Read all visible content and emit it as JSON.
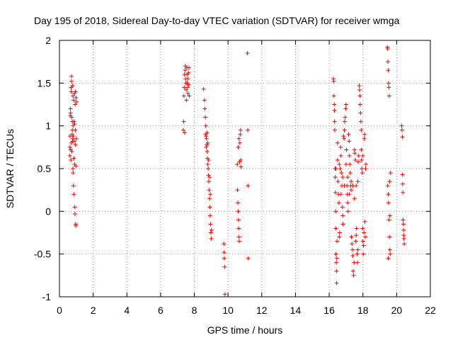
{
  "chart_data": {
    "type": "scatter",
    "title": "Day 195 of 2018, Sidereal Day-to-day VTEC variation (SDTVAR) for receiver wmga",
    "xlabel": "GPS time / hours",
    "ylabel": "SDTVAR / TECUs",
    "xlim": [
      0,
      22
    ],
    "ylim": [
      -1,
      2
    ],
    "xticks": [
      "0",
      "2",
      "4",
      "6",
      "8",
      "10",
      "12",
      "14",
      "16",
      "18",
      "20",
      "22"
    ],
    "yticks": [
      "-1",
      "-0.5",
      "0",
      "0.5",
      "1",
      "1.5",
      "2"
    ],
    "grid": true,
    "marker": "+",
    "marker_color": "#ff0000",
    "series": [
      {
        "name": "SDTVAR",
        "points": [
          [
            0.62,
            0.65
          ],
          [
            0.62,
            0.75
          ],
          [
            0.63,
            0.88
          ],
          [
            0.64,
            1.12
          ],
          [
            0.65,
            1.2
          ],
          [
            0.66,
            1.15
          ],
          [
            0.67,
            0.72
          ],
          [
            0.68,
            0.6
          ],
          [
            0.69,
            1.45
          ],
          [
            0.7,
            1.4
          ],
          [
            0.71,
            0.8
          ],
          [
            0.72,
            1.58
          ],
          [
            0.72,
            1.52
          ],
          [
            0.73,
            1.1
          ],
          [
            0.74,
            0.7
          ],
          [
            0.75,
            0.9
          ],
          [
            0.76,
            1.05
          ],
          [
            0.76,
            0.95
          ],
          [
            0.77,
            0.82
          ],
          [
            0.78,
            1.47
          ],
          [
            0.79,
            0.85
          ],
          [
            0.8,
            0.5
          ],
          [
            0.8,
            1.35
          ],
          [
            0.81,
            0.45
          ],
          [
            0.81,
            1.0
          ],
          [
            0.82,
            0.88
          ],
          [
            0.83,
            0.3
          ],
          [
            0.84,
            1.3
          ],
          [
            0.85,
            0.2
          ],
          [
            0.86,
            0.62
          ],
          [
            0.87,
            1.05
          ],
          [
            0.88,
            0.82
          ],
          [
            0.89,
            1.38
          ],
          [
            0.9,
            0.55
          ],
          [
            0.9,
            1.02
          ],
          [
            0.91,
            0.05
          ],
          [
            0.92,
            -0.03
          ],
          [
            0.93,
            1.25
          ],
          [
            0.94,
            0.95
          ],
          [
            0.95,
            0.78
          ],
          [
            0.95,
            1.4
          ],
          [
            0.96,
            -0.15
          ],
          [
            0.97,
            -0.17
          ],
          [
            0.98,
            0.53
          ],
          [
            0.99,
            1.33
          ],
          [
            1.0,
            0.85
          ],
          [
            1.01,
            1.28
          ],
          [
            7.35,
            0.95
          ],
          [
            7.37,
            1.05
          ],
          [
            7.38,
            1.35
          ],
          [
            7.4,
            1.45
          ],
          [
            7.42,
            1.6
          ],
          [
            7.43,
            0.92
          ],
          [
            7.45,
            1.65
          ],
          [
            7.47,
            1.7
          ],
          [
            7.48,
            1.55
          ],
          [
            7.5,
            1.5
          ],
          [
            7.52,
            1.42
          ],
          [
            7.53,
            1.3
          ],
          [
            7.55,
            1.68
          ],
          [
            7.57,
            1.6
          ],
          [
            7.58,
            1.5
          ],
          [
            7.6,
            1.45
          ],
          [
            7.62,
            1.38
          ],
          [
            7.63,
            1.55
          ],
          [
            7.65,
            1.62
          ],
          [
            7.67,
            1.48
          ],
          [
            7.68,
            1.68
          ],
          [
            7.7,
            1.35
          ],
          [
            8.55,
            1.43
          ],
          [
            8.6,
            1.3
          ],
          [
            8.62,
            1.2
          ],
          [
            8.65,
            1.1
          ],
          [
            8.68,
            1.0
          ],
          [
            8.7,
            0.88
          ],
          [
            8.72,
            0.85
          ],
          [
            8.74,
            0.78
          ],
          [
            8.76,
            0.7
          ],
          [
            8.78,
            0.62
          ],
          [
            8.8,
            0.55
          ],
          [
            8.82,
            0.5
          ],
          [
            8.84,
            0.42
          ],
          [
            8.86,
            0.35
          ],
          [
            8.88,
            0.25
          ],
          [
            8.9,
            0.15
          ],
          [
            8.92,
            0.05
          ],
          [
            8.94,
            -0.05
          ],
          [
            8.96,
            -0.15
          ],
          [
            8.98,
            -0.25
          ],
          [
            9.0,
            -0.32
          ],
          [
            8.66,
            0.9
          ],
          [
            8.7,
            0.75
          ],
          [
            8.75,
            0.92
          ],
          [
            8.8,
            0.8
          ],
          [
            8.85,
            0.6
          ],
          [
            8.9,
            0.4
          ],
          [
            8.95,
            0.2
          ],
          [
            9.02,
            -0.22
          ],
          [
            9.75,
            -0.38
          ],
          [
            9.77,
            -0.48
          ],
          [
            9.78,
            -0.55
          ],
          [
            9.8,
            -0.65
          ],
          [
            9.82,
            -0.97
          ],
          [
            10.55,
            0.55
          ],
          [
            10.56,
            0.25
          ],
          [
            10.58,
            0.1
          ],
          [
            10.6,
            0.0
          ],
          [
            10.62,
            -0.1
          ],
          [
            10.63,
            -0.2
          ],
          [
            10.65,
            -0.3
          ],
          [
            10.66,
            -0.35
          ],
          [
            10.68,
            0.58
          ],
          [
            10.7,
            0.8
          ],
          [
            10.72,
            0.9
          ],
          [
            10.74,
            0.95
          ],
          [
            10.75,
            0.6
          ],
          [
            10.76,
            0.52
          ],
          [
            10.6,
            0.75
          ],
          [
            10.65,
            0.85
          ],
          [
            11.15,
            1.85
          ],
          [
            11.17,
            0.95
          ],
          [
            11.18,
            0.3
          ],
          [
            11.2,
            -0.55
          ],
          [
            16.25,
            1.55
          ],
          [
            16.27,
            1.52
          ],
          [
            16.28,
            1.35
          ],
          [
            16.3,
            1.25
          ],
          [
            16.31,
            1.18
          ],
          [
            16.32,
            1.05
          ],
          [
            16.33,
            0.95
          ],
          [
            16.35,
            0.5
          ],
          [
            16.36,
            0.4
          ],
          [
            16.37,
            0.22
          ],
          [
            16.38,
            0.0
          ],
          [
            16.39,
            -0.2
          ],
          [
            16.4,
            -0.5
          ],
          [
            16.42,
            -0.6
          ],
          [
            16.43,
            -0.7
          ],
          [
            16.44,
            -0.84
          ],
          [
            16.45,
            -0.55
          ],
          [
            16.46,
            -0.35
          ],
          [
            16.5,
            0.6
          ],
          [
            16.52,
            0.35
          ],
          [
            16.55,
            0.2
          ],
          [
            16.58,
            0.1
          ],
          [
            16.6,
            -0.3
          ],
          [
            16.62,
            -0.25
          ],
          [
            16.65,
            0.5
          ],
          [
            16.68,
            0.75
          ],
          [
            16.7,
            0.65
          ],
          [
            16.72,
            0.45
          ],
          [
            16.75,
            0.3
          ],
          [
            16.78,
            0.05
          ],
          [
            16.8,
            -0.05
          ],
          [
            16.82,
            -0.15
          ],
          [
            16.85,
            0.88
          ],
          [
            16.88,
            0.85
          ],
          [
            16.9,
            0.95
          ],
          [
            16.92,
            1.05
          ],
          [
            16.95,
            1.1
          ],
          [
            16.98,
            1.2
          ],
          [
            17.0,
            1.25
          ],
          [
            17.02,
            0.72
          ],
          [
            17.05,
            0.3
          ],
          [
            17.08,
            0.2
          ],
          [
            17.1,
            0.1
          ],
          [
            17.12,
            0.0
          ],
          [
            17.15,
            0.9
          ],
          [
            17.18,
            0.82
          ],
          [
            17.2,
            0.65
          ],
          [
            17.22,
            0.55
          ],
          [
            17.25,
            0.45
          ],
          [
            17.28,
            0.3
          ],
          [
            17.3,
            0.25
          ],
          [
            17.32,
            -0.3
          ],
          [
            17.35,
            -0.38
          ],
          [
            17.38,
            -0.45
          ],
          [
            17.4,
            -0.52
          ],
          [
            17.42,
            -0.7
          ],
          [
            17.45,
            -0.75
          ],
          [
            17.48,
            -0.6
          ],
          [
            17.5,
            0.72
          ],
          [
            17.52,
            0.68
          ],
          [
            17.55,
            0.6
          ],
          [
            17.58,
            -0.35
          ],
          [
            17.6,
            -0.28
          ],
          [
            17.62,
            -0.2
          ],
          [
            17.65,
            -0.5
          ],
          [
            17.68,
            -0.6
          ],
          [
            17.7,
            -0.45
          ],
          [
            17.72,
            0.58
          ],
          [
            17.75,
            0.65
          ],
          [
            17.78,
            1.47
          ],
          [
            17.8,
            1.42
          ],
          [
            17.82,
            1.35
          ],
          [
            17.84,
            1.25
          ],
          [
            17.86,
            1.15
          ],
          [
            17.88,
            1.05
          ],
          [
            17.9,
            0.95
          ],
          [
            17.92,
            0.6
          ],
          [
            17.94,
            0.5
          ],
          [
            17.96,
            0.45
          ],
          [
            17.98,
            -0.2
          ],
          [
            18.0,
            -0.35
          ],
          [
            18.02,
            -0.5
          ],
          [
            18.04,
            -0.4
          ],
          [
            18.06,
            -0.25
          ],
          [
            18.08,
            0.85
          ],
          [
            18.1,
            0.9
          ],
          [
            18.12,
            -0.12
          ],
          [
            18.14,
            -0.3
          ],
          [
            18.16,
            0.5
          ],
          [
            18.18,
            0.55
          ],
          [
            18.0,
            0.65
          ],
          [
            17.9,
            0.72
          ],
          [
            17.7,
            0.35
          ],
          [
            17.6,
            0.3
          ],
          [
            17.5,
            0.15
          ],
          [
            17.4,
            0.3
          ],
          [
            17.3,
            0.35
          ],
          [
            17.2,
            0.2
          ],
          [
            17.1,
            0.4
          ],
          [
            17.0,
            0.55
          ],
          [
            16.9,
            0.3
          ],
          [
            16.8,
            0.4
          ],
          [
            16.7,
            0.2
          ],
          [
            16.6,
            0.55
          ],
          [
            16.5,
            0.8
          ],
          [
            16.4,
            0.5
          ],
          [
            19.45,
            1.92
          ],
          [
            19.47,
            1.9
          ],
          [
            19.48,
            1.75
          ],
          [
            19.5,
            1.65
          ],
          [
            19.52,
            1.5
          ],
          [
            19.54,
            1.45
          ],
          [
            19.56,
            1.35
          ],
          [
            19.47,
            0.3
          ],
          [
            19.5,
            0.2
          ],
          [
            19.52,
            0.1
          ],
          [
            19.55,
            -0.1
          ],
          [
            19.57,
            -0.3
          ],
          [
            19.6,
            -0.45
          ],
          [
            19.62,
            -0.5
          ],
          [
            19.64,
            0.45
          ],
          [
            19.5,
            -0.55
          ],
          [
            19.58,
            0.35
          ],
          [
            19.6,
            -0.05
          ],
          [
            20.3,
            1.0
          ],
          [
            20.32,
            0.95
          ],
          [
            20.34,
            0.87
          ],
          [
            20.35,
            0.43
          ],
          [
            20.36,
            0.32
          ],
          [
            20.37,
            0.22
          ],
          [
            20.38,
            -0.1
          ],
          [
            20.4,
            -0.15
          ],
          [
            20.41,
            -0.22
          ],
          [
            20.42,
            -0.28
          ],
          [
            20.43,
            -0.32
          ],
          [
            20.45,
            -0.38
          ]
        ]
      }
    ]
  }
}
